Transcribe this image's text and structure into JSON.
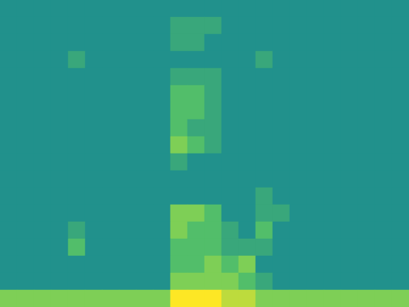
{
  "chart_data": {
    "type": "heatmap",
    "tick_labels": false,
    "zlim": [
      0,
      10
    ],
    "cells": [
      [
        5,
        5,
        5,
        5,
        5,
        5,
        5,
        5,
        5,
        5,
        5,
        5,
        5,
        5,
        5,
        5,
        5,
        5,
        5,
        5,
        5,
        5,
        5,
        5
      ],
      [
        5,
        5,
        5,
        5,
        5,
        5,
        5,
        5,
        5,
        5,
        6,
        6,
        6,
        5,
        5,
        5,
        5,
        5,
        5,
        5,
        5,
        5,
        5,
        5
      ],
      [
        5,
        5,
        5,
        5,
        5,
        5,
        5,
        5,
        5,
        5,
        6,
        6,
        5,
        5,
        5,
        5,
        5,
        5,
        5,
        5,
        5,
        5,
        5,
        5
      ],
      [
        5,
        5,
        5,
        5,
        6,
        5,
        5,
        5,
        5,
        5,
        5,
        5,
        5,
        5,
        5,
        6,
        5,
        5,
        5,
        5,
        5,
        5,
        5,
        5
      ],
      [
        5,
        5,
        5,
        5,
        5,
        5,
        5,
        5,
        5,
        5,
        6,
        6,
        6,
        5,
        5,
        5,
        5,
        5,
        5,
        5,
        5,
        5,
        5,
        5
      ],
      [
        5,
        5,
        5,
        5,
        5,
        5,
        5,
        5,
        5,
        5,
        7,
        7,
        6,
        5,
        5,
        5,
        5,
        5,
        5,
        5,
        5,
        5,
        5,
        5
      ],
      [
        5,
        5,
        5,
        5,
        5,
        5,
        5,
        5,
        5,
        5,
        7,
        7,
        6,
        5,
        5,
        5,
        5,
        5,
        5,
        5,
        5,
        5,
        5,
        5
      ],
      [
        5,
        5,
        5,
        5,
        5,
        5,
        5,
        5,
        5,
        5,
        7,
        6,
        6,
        5,
        5,
        5,
        5,
        5,
        5,
        5,
        5,
        5,
        5,
        5
      ],
      [
        5,
        5,
        5,
        5,
        5,
        5,
        5,
        5,
        5,
        5,
        8,
        7,
        6,
        5,
        5,
        5,
        5,
        5,
        5,
        5,
        5,
        5,
        5,
        5
      ],
      [
        5,
        5,
        5,
        5,
        5,
        5,
        5,
        5,
        5,
        5,
        6,
        5,
        5,
        5,
        5,
        5,
        5,
        5,
        5,
        5,
        5,
        5,
        5,
        5
      ],
      [
        5,
        5,
        5,
        5,
        5,
        5,
        5,
        5,
        5,
        5,
        5,
        5,
        5,
        5,
        5,
        5,
        5,
        5,
        5,
        5,
        5,
        5,
        5,
        5
      ],
      [
        5,
        5,
        5,
        5,
        5,
        5,
        5,
        5,
        5,
        5,
        5,
        5,
        5,
        5,
        5,
        6,
        5,
        5,
        5,
        5,
        5,
        5,
        5,
        5
      ],
      [
        5,
        5,
        5,
        5,
        5,
        5,
        5,
        5,
        5,
        5,
        8,
        8,
        7,
        5,
        5,
        6,
        6,
        5,
        5,
        5,
        5,
        5,
        5,
        5
      ],
      [
        5,
        5,
        5,
        5,
        6,
        5,
        5,
        5,
        5,
        5,
        8,
        7,
        7,
        6,
        5,
        7,
        5,
        5,
        5,
        5,
        5,
        5,
        5,
        5
      ],
      [
        5,
        5,
        5,
        5,
        7,
        5,
        5,
        5,
        5,
        5,
        7,
        7,
        7,
        6,
        6,
        6,
        5,
        5,
        5,
        5,
        5,
        5,
        5,
        5
      ],
      [
        5,
        5,
        5,
        5,
        5,
        5,
        5,
        5,
        5,
        5,
        7,
        7,
        8,
        7,
        8,
        5,
        5,
        5,
        5,
        5,
        5,
        5,
        5,
        5
      ],
      [
        5,
        5,
        5,
        5,
        5,
        5,
        5,
        5,
        5,
        5,
        8,
        8,
        8,
        8,
        7,
        6,
        5,
        5,
        5,
        5,
        5,
        5,
        5,
        5
      ],
      [
        8,
        8,
        8,
        8,
        8,
        8,
        8,
        8,
        8,
        8,
        10,
        10,
        10,
        9,
        9,
        8,
        8,
        8,
        8,
        8,
        8,
        8,
        8,
        8
      ]
    ]
  }
}
